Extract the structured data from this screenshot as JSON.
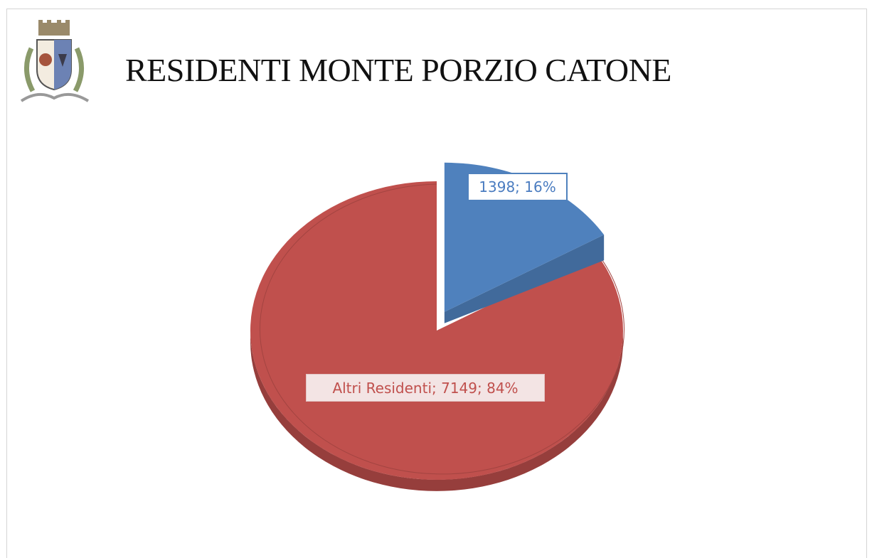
{
  "colors": {
    "series_other": "#c0504d",
    "series_highlight": "#4f81bd"
  },
  "logo": {
    "icon": "municipal-coat-of-arms"
  },
  "chart_data": {
    "type": "pie",
    "style": "3d",
    "title": "RESIDENTI MONTE PORZIO CATONE",
    "slices": [
      {
        "name": "",
        "value": 1398,
        "percent": 16,
        "label": "1398; 16%",
        "color": "#4f81bd"
      },
      {
        "name": "Altri Residenti",
        "value": 7149,
        "percent": 84,
        "label": "Altri Residenti; 7149;  84%",
        "color": "#c0504d"
      }
    ]
  }
}
